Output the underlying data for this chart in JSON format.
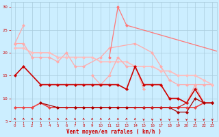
{
  "xlabel": "Vent moyen/en rafales ( km/h )",
  "bg_color": "#cceeff",
  "grid_color": "#aaccdd",
  "x_ticks": [
    0,
    1,
    2,
    3,
    4,
    5,
    6,
    7,
    8,
    9,
    10,
    11,
    12,
    13,
    14,
    15,
    16,
    17,
    18,
    19,
    20,
    21,
    22,
    23
  ],
  "ylim": [
    5,
    31
  ],
  "xlim": [
    -0.5,
    23.5
  ],
  "yticks": [
    5,
    10,
    15,
    20,
    25,
    30
  ],
  "series": [
    {
      "x": [
        0,
        1
      ],
      "y": [
        22,
        26
      ],
      "color": "#ffaaaa",
      "lw": 0.9,
      "marker": "D",
      "ms": 2.0,
      "style": "-"
    },
    {
      "x": [
        0,
        1,
        2,
        3,
        4,
        5,
        6,
        7,
        8,
        10,
        11,
        14,
        16,
        17,
        18,
        19,
        20,
        21,
        22,
        23
      ],
      "y": [
        22,
        22,
        19,
        19,
        19,
        18,
        20,
        17,
        17,
        19,
        21,
        22,
        20,
        17,
        14,
        13,
        13,
        13,
        13,
        13
      ],
      "color": "#ffaaaa",
      "lw": 0.9,
      "marker": "D",
      "ms": 2.0,
      "style": "-"
    },
    {
      "x": [
        0,
        1,
        2,
        3,
        4,
        5,
        6,
        7,
        8,
        9,
        10,
        11,
        12,
        13,
        14,
        15,
        16,
        17,
        18,
        19,
        20,
        21,
        22,
        23
      ],
      "y": [
        21,
        21,
        20,
        20,
        20,
        19,
        19,
        19,
        19,
        19,
        18,
        18,
        18,
        18,
        17,
        17,
        17,
        16,
        16,
        15,
        15,
        15,
        14,
        13
      ],
      "color": "#ffbbbb",
      "lw": 1.2,
      "marker": "D",
      "ms": 2.0,
      "style": "-"
    },
    {
      "x": [
        11,
        12,
        13,
        26
      ],
      "y": [
        19,
        30,
        26,
        19
      ],
      "color": "#ff7777",
      "lw": 0.9,
      "marker": "D",
      "ms": 2.0,
      "style": "-"
    },
    {
      "x": [
        9,
        10,
        11,
        12,
        13,
        14,
        15
      ],
      "y": [
        15,
        13,
        15,
        19,
        17,
        17,
        12
      ],
      "color": "#ffaaaa",
      "lw": 0.9,
      "marker": "D",
      "ms": 2.0,
      "style": "-"
    },
    {
      "x": [
        14,
        15,
        16,
        17,
        18,
        19,
        20,
        21,
        22,
        23
      ],
      "y": [
        17,
        13,
        13,
        13,
        10,
        10,
        9,
        13,
        9,
        9
      ],
      "color": "#ffaaaa",
      "lw": 0.9,
      "marker": "D",
      "ms": 2.0,
      "style": "-"
    },
    {
      "x": [
        0,
        1,
        3,
        4,
        5,
        6,
        7,
        8,
        9,
        10,
        11,
        12,
        13,
        14,
        15,
        16,
        17,
        18,
        19,
        20,
        21,
        22,
        23
      ],
      "y": [
        15,
        17,
        13,
        13,
        13,
        13,
        13,
        13,
        13,
        13,
        13,
        13,
        12,
        17,
        13,
        13,
        13,
        10,
        10,
        9,
        12,
        9,
        9
      ],
      "color": "#cc0000",
      "lw": 1.2,
      "marker": "D",
      "ms": 2.0,
      "style": "-"
    },
    {
      "x": [
        0,
        1,
        2,
        3,
        4,
        5,
        6,
        7,
        8,
        9,
        10,
        11,
        12,
        13,
        14,
        15,
        16,
        17,
        18,
        19,
        20,
        21,
        22,
        23
      ],
      "y": [
        8,
        8,
        8,
        9,
        8,
        8,
        8,
        8,
        8,
        8,
        8,
        8,
        8,
        8,
        8,
        8,
        8,
        8,
        8,
        8,
        8,
        8,
        9,
        9
      ],
      "color": "#ee4444",
      "lw": 1.2,
      "marker": "D",
      "ms": 2.0,
      "style": "-"
    },
    {
      "x": [
        3,
        5,
        7,
        8,
        9,
        10,
        11,
        12,
        13,
        15,
        16,
        17,
        18,
        19,
        20,
        21,
        22,
        23
      ],
      "y": [
        9,
        8,
        8,
        8,
        8,
        8,
        8,
        8,
        8,
        8,
        8,
        8,
        8,
        7,
        7,
        10,
        9,
        9
      ],
      "color": "#aa0000",
      "lw": 0.9,
      "marker": "D",
      "ms": 2.0,
      "style": "-"
    },
    {
      "x": [
        15,
        16,
        17,
        18,
        19,
        20
      ],
      "y": [
        8,
        8,
        8,
        8,
        8,
        9
      ],
      "color": "#cc2222",
      "lw": 0.9,
      "marker": "D",
      "ms": 2.0,
      "style": "-"
    }
  ],
  "arrow_up_positions": [
    0,
    1,
    2,
    3,
    4,
    5,
    6,
    7,
    8,
    9,
    10,
    11,
    12,
    13,
    14
  ],
  "arrow_dn_positions": [
    15,
    16,
    17,
    18,
    19,
    20,
    21,
    22,
    23
  ],
  "arrow_color": "#cc0000"
}
